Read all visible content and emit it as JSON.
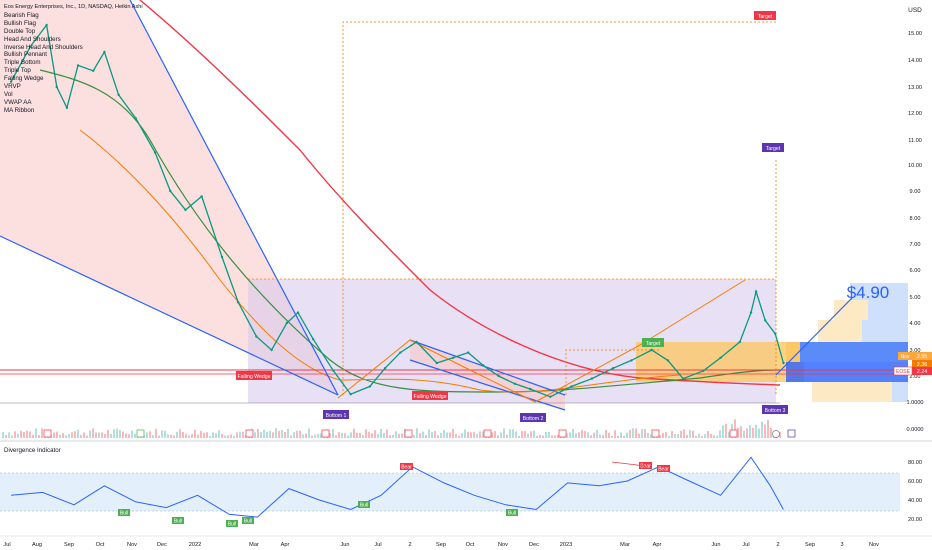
{
  "header": {
    "title": "Eos Energy Enterprises, Inc., 1D, NASDAQ, Heikin Ashi"
  },
  "indicators": [
    "Bearish Flag",
    "Bullish Flag",
    "Double Top",
    "Head And Shoulders",
    "Inverse Head And Shoulders",
    "Bullish Pennant",
    "Triple Bottom",
    "Triple Top",
    "Falling Wedge",
    "VRVP",
    "Vol",
    "VWAP AA",
    "MA Ribbon"
  ],
  "currency": "USD",
  "price_axis": [
    "15.00",
    "14.00",
    "13.00",
    "12.00",
    "11.00",
    "10.00",
    "9.00",
    "8.00",
    "7.00",
    "6.00",
    "5.00",
    "4.00",
    "3.00",
    "2.00",
    "1.0000",
    "0.0000"
  ],
  "time_axis": [
    "Jul",
    "Aug",
    "Sep",
    "Oct",
    "Nov",
    "Dec",
    "2022",
    "Mar",
    "Apr",
    "Jun",
    "Jul",
    "Sep",
    "Oct",
    "Nov",
    "Dec",
    "2023",
    "Mar",
    "Apr",
    "Jun",
    "Jul",
    "Sep",
    "Oct",
    "Nov"
  ],
  "time_axis_labels": [
    "Jul",
    "Aug",
    "Sep",
    "Oct",
    "Nov",
    "Dec",
    "2022",
    "Mar",
    "Apr",
    "Jun",
    "Jul",
    "2",
    "Sep",
    "Oct",
    "Nov",
    "Dec",
    "2023",
    "Mar",
    "Apr",
    "Jun",
    "Jul",
    "2",
    "Sep",
    "3",
    "Nov"
  ],
  "pattern_labels": {
    "falling_wedge_1": "Falling Wedge",
    "falling_wedge_2": "Falling Wedge",
    "bottom_1": "Bottom 1",
    "bottom_2": "Bottom 2",
    "bottom_3": "Bottom 3",
    "target_1": "Target",
    "target_2": "Target",
    "target_3": "Target"
  },
  "annotation": "$4.90",
  "price_tags": {
    "label_a": "2.55",
    "label_b": "2.36",
    "ticker": "EOSE",
    "last": "2.24",
    "mini": "Nov"
  },
  "oscillator": {
    "title": "Divergence Indicator",
    "axis": [
      "80.00",
      "60.00",
      "40.00",
      "20.00"
    ],
    "bull_label": "Bull",
    "bear_label": "Bear"
  },
  "colors": {
    "bull_label": "#4caf50",
    "bear_label": "#f23645",
    "bottom_label": "#5e35b1",
    "wedge_label": "#f23645",
    "target_label": "#f23645",
    "ma_red": "#f23645",
    "ma_green": "#388e3c",
    "ma_orange": "#f57c00",
    "wedge_blue": "#2962ff"
  },
  "chart_data": {
    "type": "line",
    "title": "Eos Energy Enterprises, Inc., 1D, NASDAQ, Heikin Ashi",
    "ylim": [
      0,
      15.6
    ],
    "price_series": [
      {
        "x": "2021-07-01",
        "y": 13.2
      },
      {
        "x": "2021-07-20",
        "y": 14.5
      },
      {
        "x": "2021-08-05",
        "y": 15.3
      },
      {
        "x": "2021-08-15",
        "y": 13.0
      },
      {
        "x": "2021-08-25",
        "y": 12.2
      },
      {
        "x": "2021-09-05",
        "y": 13.8
      },
      {
        "x": "2021-09-20",
        "y": 13.6
      },
      {
        "x": "2021-10-01",
        "y": 14.3
      },
      {
        "x": "2021-10-15",
        "y": 12.7
      },
      {
        "x": "2021-11-01",
        "y": 11.8
      },
      {
        "x": "2021-11-20",
        "y": 10.5
      },
      {
        "x": "2021-12-05",
        "y": 9.0
      },
      {
        "x": "2021-12-20",
        "y": 8.3
      },
      {
        "x": "2022-01-05",
        "y": 8.8
      },
      {
        "x": "2022-01-25",
        "y": 6.5
      },
      {
        "x": "2022-02-10",
        "y": 4.8
      },
      {
        "x": "2022-02-28",
        "y": 3.5
      },
      {
        "x": "2022-03-15",
        "y": 3.0
      },
      {
        "x": "2022-03-30",
        "y": 4.0
      },
      {
        "x": "2022-04-10",
        "y": 4.4
      },
      {
        "x": "2022-04-25",
        "y": 3.4
      },
      {
        "x": "2022-05-15",
        "y": 2.2
      },
      {
        "x": "2022-06-01",
        "y": 1.3
      },
      {
        "x": "2022-06-20",
        "y": 1.6
      },
      {
        "x": "2022-07-05",
        "y": 2.3
      },
      {
        "x": "2022-07-20",
        "y": 2.9
      },
      {
        "x": "2022-08-05",
        "y": 3.3
      },
      {
        "x": "2022-08-25",
        "y": 2.5
      },
      {
        "x": "2022-09-10",
        "y": 2.7
      },
      {
        "x": "2022-09-25",
        "y": 2.9
      },
      {
        "x": "2022-10-10",
        "y": 2.4
      },
      {
        "x": "2022-10-25",
        "y": 2.0
      },
      {
        "x": "2022-11-10",
        "y": 1.7
      },
      {
        "x": "2022-11-25",
        "y": 1.5
      },
      {
        "x": "2022-12-15",
        "y": 1.2
      },
      {
        "x": "2023-01-05",
        "y": 1.6
      },
      {
        "x": "2023-01-25",
        "y": 1.9
      },
      {
        "x": "2023-02-15",
        "y": 2.3
      },
      {
        "x": "2023-03-05",
        "y": 2.6
      },
      {
        "x": "2023-03-25",
        "y": 3.0
      },
      {
        "x": "2023-04-10",
        "y": 2.6
      },
      {
        "x": "2023-04-25",
        "y": 1.9
      },
      {
        "x": "2023-05-15",
        "y": 2.2
      },
      {
        "x": "2023-06-01",
        "y": 2.7
      },
      {
        "x": "2023-06-20",
        "y": 3.3
      },
      {
        "x": "2023-07-01",
        "y": 4.4
      },
      {
        "x": "2023-07-06",
        "y": 5.2
      },
      {
        "x": "2023-07-15",
        "y": 4.1
      },
      {
        "x": "2023-07-25",
        "y": 3.6
      },
      {
        "x": "2023-08-02",
        "y": 2.5
      }
    ],
    "oscillator_series": [
      {
        "x": "2021-07-01",
        "y": 45
      },
      {
        "x": "2021-08-01",
        "y": 48
      },
      {
        "x": "2021-09-01",
        "y": 35
      },
      {
        "x": "2021-10-01",
        "y": 55
      },
      {
        "x": "2021-11-01",
        "y": 38
      },
      {
        "x": "2021-12-01",
        "y": 32
      },
      {
        "x": "2022-01-01",
        "y": 45
      },
      {
        "x": "2022-02-01",
        "y": 25
      },
      {
        "x": "2022-03-01",
        "y": 22
      },
      {
        "x": "2022-04-01",
        "y": 52
      },
      {
        "x": "2022-05-01",
        "y": 40
      },
      {
        "x": "2022-06-01",
        "y": 30
      },
      {
        "x": "2022-07-01",
        "y": 45
      },
      {
        "x": "2022-08-01",
        "y": 75
      },
      {
        "x": "2022-09-01",
        "y": 58
      },
      {
        "x": "2022-10-01",
        "y": 45
      },
      {
        "x": "2022-11-01",
        "y": 35
      },
      {
        "x": "2022-12-01",
        "y": 30
      },
      {
        "x": "2023-01-01",
        "y": 58
      },
      {
        "x": "2023-02-01",
        "y": 55
      },
      {
        "x": "2023-03-01",
        "y": 60
      },
      {
        "x": "2023-04-01",
        "y": 75
      },
      {
        "x": "2023-05-01",
        "y": 60
      },
      {
        "x": "2023-06-01",
        "y": 45
      },
      {
        "x": "2023-07-01",
        "y": 85
      },
      {
        "x": "2023-07-20",
        "y": 55
      },
      {
        "x": "2023-08-02",
        "y": 30
      }
    ]
  }
}
